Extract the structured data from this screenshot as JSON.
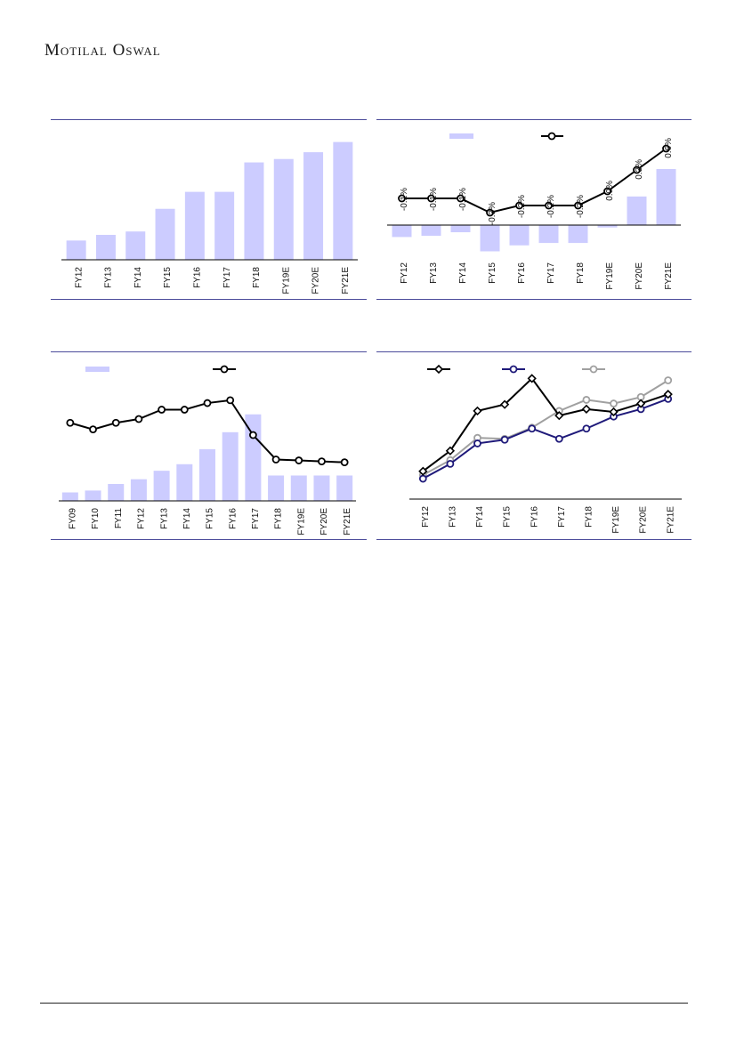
{
  "header": {
    "brand": "Motilal Oswal"
  },
  "colors": {
    "bar": "#ccccff",
    "line_black": "#000000",
    "line_navy": "#1f1a7a",
    "line_grey": "#a0a0a0",
    "rule": "#4b4b9a"
  },
  "chart_data": [
    {
      "id": "c1",
      "type": "bar",
      "categories": [
        "FY12",
        "FY13",
        "FY14",
        "FY15",
        "FY16",
        "FY17",
        "FY18",
        "FY19E",
        "FY20E",
        "FY21E"
      ],
      "values": [
        17,
        22,
        25,
        45,
        60,
        60,
        86,
        89,
        95,
        104
      ],
      "ylim": [
        0,
        110
      ],
      "grid": false
    },
    {
      "id": "c2",
      "type": "bar",
      "categories": [
        "FY12",
        "FY13",
        "FY14",
        "FY15",
        "FY16",
        "FY17",
        "FY18",
        "FY19E",
        "FY20E",
        "FY21E"
      ],
      "series": [
        {
          "values": [
            -0.1,
            -0.09,
            -0.06,
            -0.22,
            -0.17,
            -0.15,
            -0.15,
            -0.02,
            0.24,
            0.47
          ]
        },
        {
          "values": [
            -0.1,
            -0.1,
            -0.1,
            -0.3,
            -0.2,
            -0.2,
            -0.2,
            0.0,
            0.3,
            0.6
          ]
        }
      ],
      "data_labels": [
        "-0.1%",
        "-0.1%",
        "-0.1%",
        "-0.3%",
        "-0.2%",
        "-0.2%",
        "-0.2%",
        "0.0%",
        "0.3%",
        "0.6%"
      ],
      "ylim": [
        -0.3,
        0.8
      ],
      "legend": "top-center",
      "grid": false
    },
    {
      "id": "c3",
      "type": "bar",
      "categories": [
        "FY09",
        "FY10",
        "FY11",
        "FY12",
        "FY13",
        "FY14",
        "FY15",
        "FY16",
        "FY17",
        "FY18",
        "FY19E",
        "FY20E",
        "FY21E"
      ],
      "series": [
        {
          "values": [
            9,
            11,
            18,
            23,
            32,
            39,
            55,
            73,
            92,
            27,
            27,
            27,
            27
          ]
        },
        {
          "values": [
            83,
            76,
            83,
            87,
            97,
            97,
            104,
            107,
            70,
            44,
            43,
            42,
            41
          ]
        }
      ],
      "ylim": [
        0,
        140
      ],
      "legend": "top-center",
      "grid": false
    },
    {
      "id": "c4",
      "type": "line",
      "categories": [
        "FY12",
        "FY13",
        "FY14",
        "FY15",
        "FY16",
        "FY17",
        "FY18",
        "FY19E",
        "FY20E",
        "FY21E"
      ],
      "series": [
        {
          "values": [
            30,
            52,
            95,
            102,
            130,
            90,
            97,
            94,
            103,
            113
          ]
        },
        {
          "values": [
            22,
            38,
            60,
            64,
            76,
            65,
            76,
            89,
            97,
            108
          ]
        },
        {
          "values": [
            26,
            42,
            66,
            65,
            77,
            95,
            107,
            103,
            110,
            128
          ]
        }
      ],
      "ylim": [
        0,
        140
      ],
      "legend": "top-center",
      "grid": false
    }
  ]
}
